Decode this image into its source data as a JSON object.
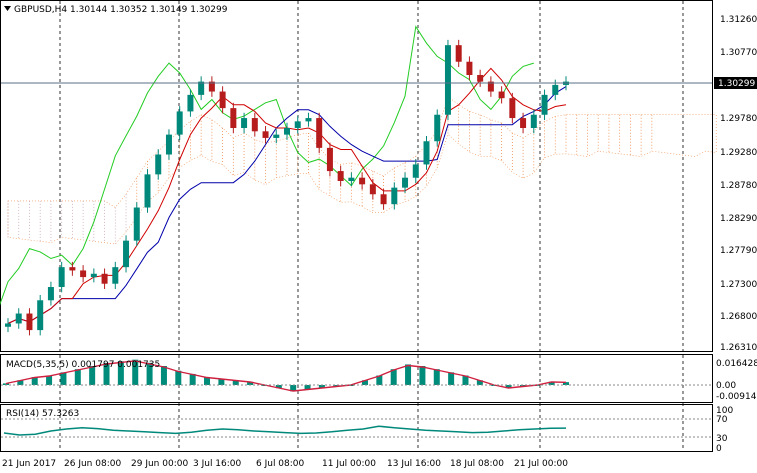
{
  "main": {
    "symbol_label": "GBPUSD,H4  1.30144 1.30352 1.30149 1.30299",
    "price_ticks": [
      "1.31260",
      "1.30770",
      "1.30299",
      "1.29780",
      "1.29280",
      "1.28780",
      "1.28290",
      "1.27790",
      "1.27300",
      "1.26800",
      "1.26310"
    ],
    "current_price": "1.30299"
  },
  "macd": {
    "label": "MACD(5,35,5) 0.001797 0.001735",
    "ticks": [
      "0.016428",
      "0.00",
      "-0.009148"
    ]
  },
  "rsi": {
    "label": "RSI(14) 57.3263",
    "ticks": [
      "100",
      "70",
      "30",
      "0"
    ]
  },
  "time_ticks": [
    "21 Jun 2017",
    "26 Jun 08:00",
    "29 Jun 00:00",
    "3 Jul 16:00",
    "6 Jul 08:00",
    "11 Jul 00:00",
    "13 Jul 16:00",
    "18 Jul 08:00",
    "21 Jul 00:00"
  ],
  "colors": {
    "bull": "#00897B",
    "bear": "#B71C1C",
    "cloud": "#F08C4A",
    "cloud2": "#C9A6B8",
    "tenkan": "#D00000",
    "kijun": "#0000AA",
    "chikou": "#22CC22",
    "macd_hist": "#008C7A",
    "macd_signal": "#D02040",
    "rsi_line": "#00897B"
  },
  "chart_data": {
    "type": "candlestick",
    "symbol": "GBPUSD",
    "timeframe": "H4",
    "ohlc_last": {
      "open": 1.30144,
      "high": 1.30352,
      "low": 1.30149,
      "close": 1.30299
    },
    "ylim": [
      1.2631,
      1.3126
    ],
    "close_series": [
      1.2665,
      1.268,
      1.2655,
      1.27,
      1.272,
      1.275,
      1.2745,
      1.2735,
      1.274,
      1.2725,
      1.275,
      1.279,
      1.284,
      1.289,
      1.292,
      1.295,
      1.2985,
      1.301,
      1.303,
      1.3015,
      1.299,
      1.296,
      1.2975,
      1.2955,
      1.2945,
      1.295,
      1.296,
      1.297,
      1.2975,
      1.293,
      1.2895,
      1.288,
      1.2885,
      1.2875,
      1.286,
      1.2845,
      1.287,
      1.2885,
      1.2905,
      1.294,
      1.298,
      1.3085,
      1.306,
      1.304,
      1.303,
      1.3015,
      1.3005,
      1.2975,
      1.296,
      1.298,
      1.301,
      1.3025,
      1.303
    ],
    "macd_hist": [
      0.001,
      0.003,
      0.005,
      0.006,
      0.008,
      0.01,
      0.012,
      0.014,
      0.015,
      0.016,
      0.014,
      0.012,
      0.009,
      0.007,
      0.005,
      0.004,
      0.003,
      0.002,
      0.0,
      -0.002,
      -0.004,
      -0.003,
      -0.002,
      -0.001,
      0.0,
      0.003,
      0.006,
      0.01,
      0.013,
      0.012,
      0.01,
      0.008,
      0.006,
      0.003,
      0.0,
      -0.002,
      -0.001,
      0.0,
      0.002,
      0.0018
    ],
    "rsi_series": [
      45,
      40,
      42,
      50,
      55,
      58,
      56,
      52,
      50,
      48,
      46,
      44,
      47,
      52,
      55,
      53,
      50,
      48,
      46,
      44,
      45,
      48,
      52,
      55,
      62,
      58,
      55,
      52,
      50,
      48,
      46,
      47,
      50,
      53,
      55,
      57,
      57.3
    ]
  }
}
